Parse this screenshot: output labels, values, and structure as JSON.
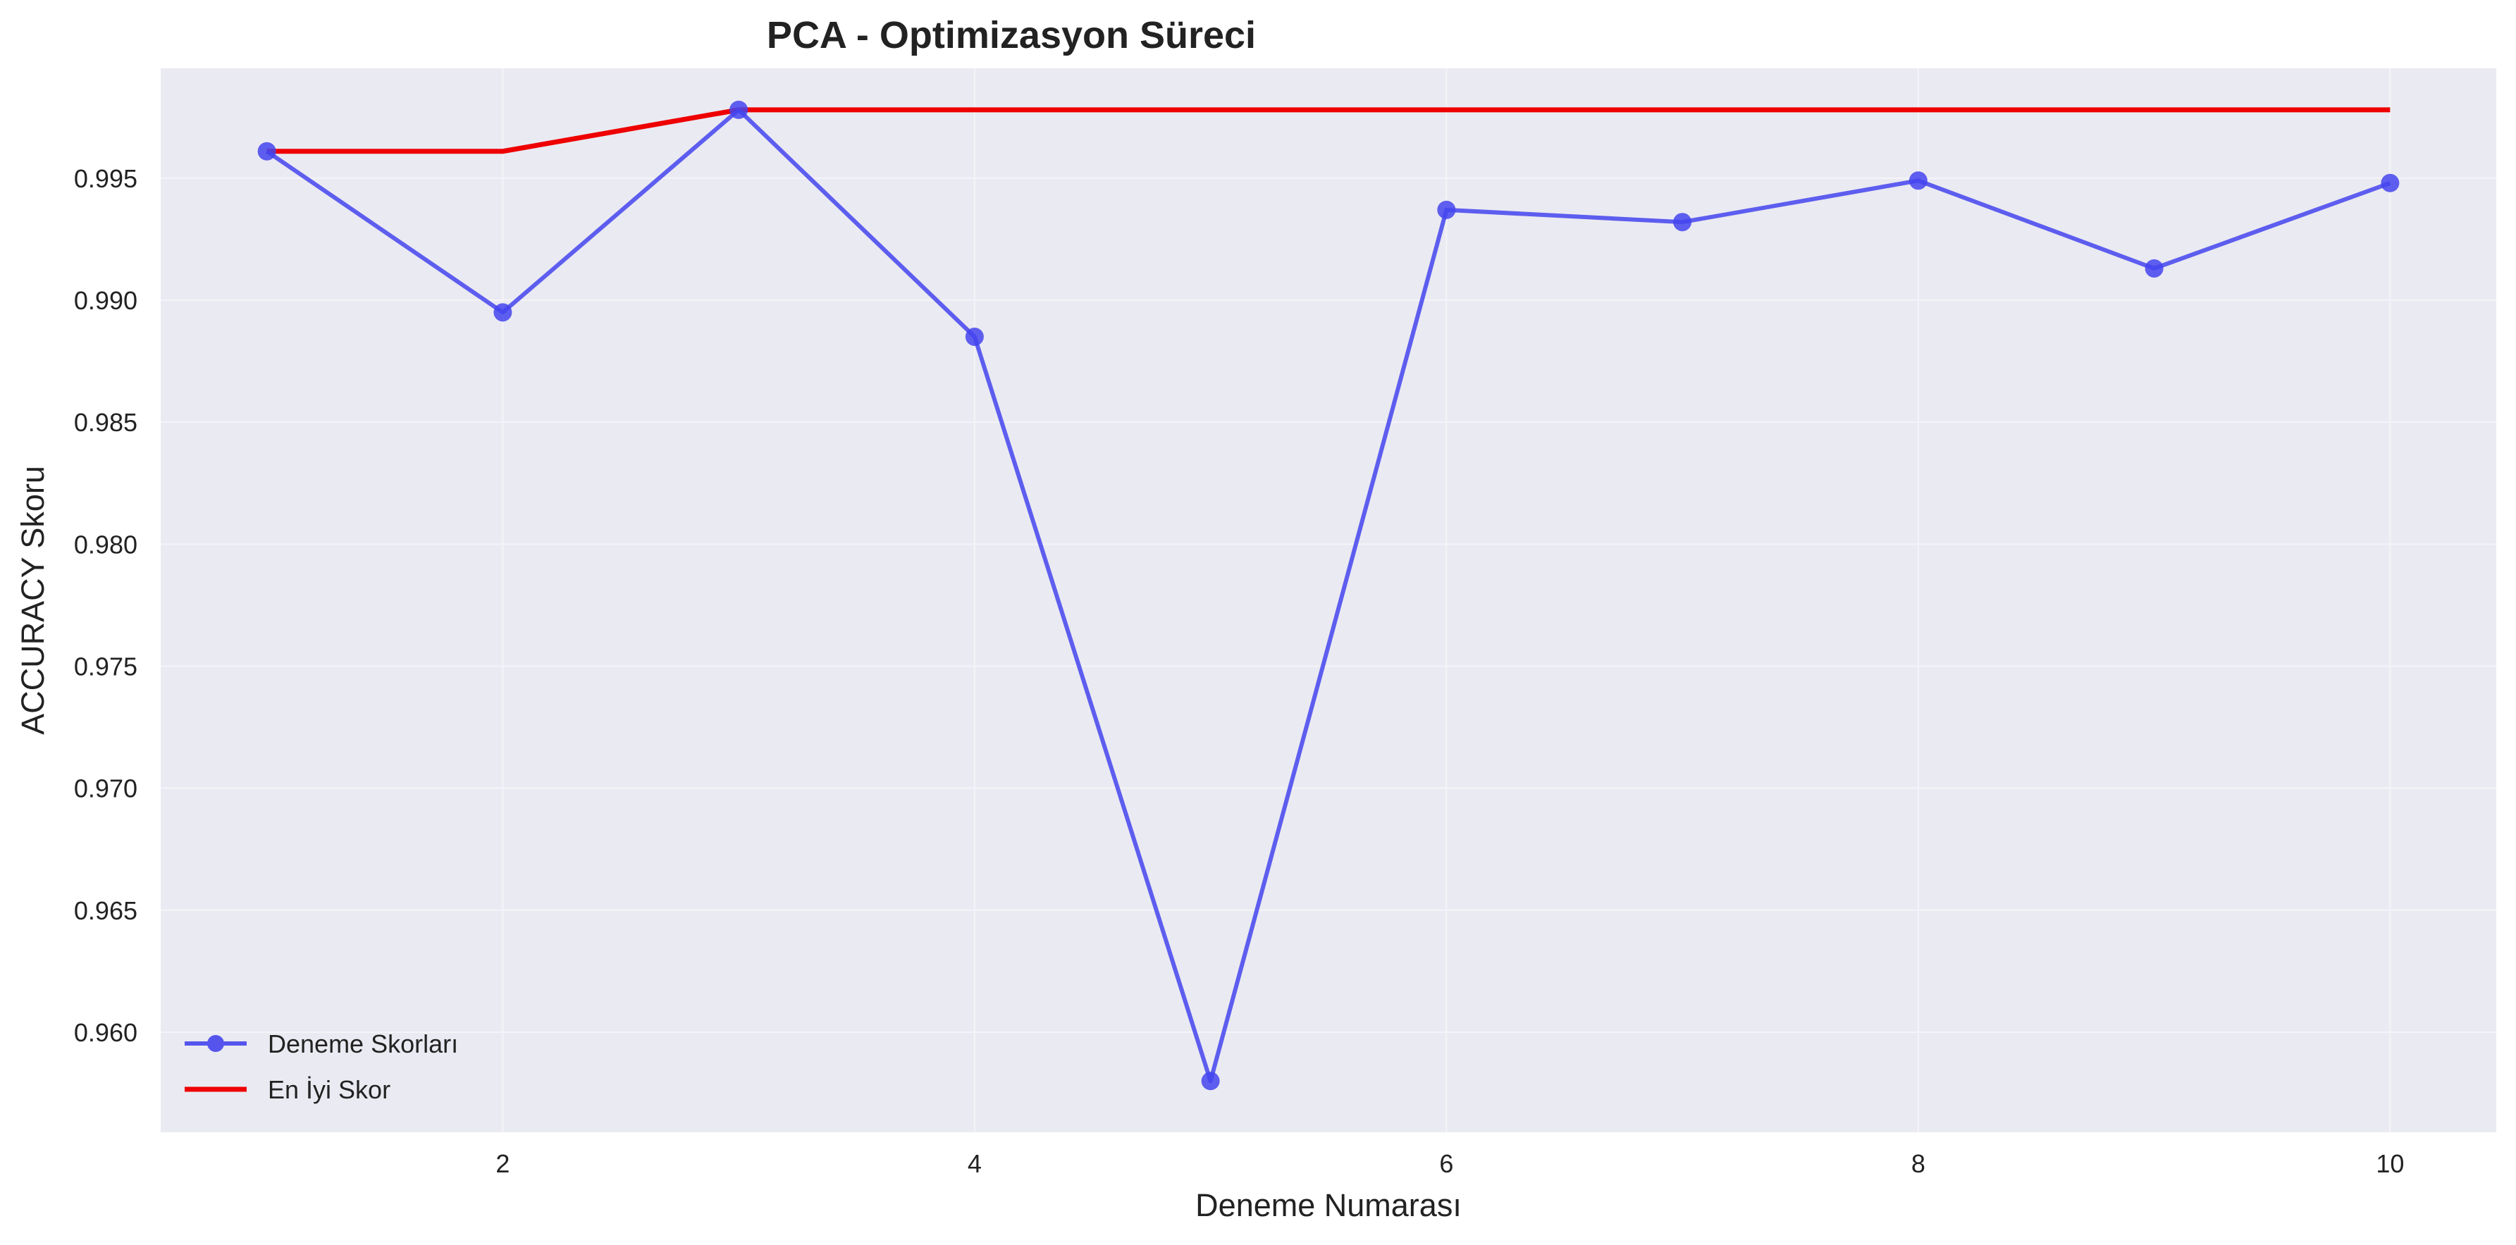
{
  "chart_data": {
    "type": "line",
    "title": "PCA - Optimizasyon Süreci",
    "xlabel": "Deneme Numarası",
    "ylabel": "ACCURACY Skoru",
    "xlim": [
      0.55,
      10.45
    ],
    "ylim": [
      0.9559,
      0.9995
    ],
    "xticks": [
      2,
      4,
      6,
      8,
      10
    ],
    "yticks": [
      0.96,
      0.965,
      0.97,
      0.975,
      0.98,
      0.985,
      0.99,
      0.995
    ],
    "ytick_labels": [
      "0.960",
      "0.965",
      "0.970",
      "0.975",
      "0.980",
      "0.985",
      "0.990",
      "0.995"
    ],
    "grid": true,
    "legend_position": "lower-left",
    "x": [
      1,
      2,
      3,
      4,
      5,
      6,
      7,
      8,
      9,
      10
    ],
    "series": [
      {
        "name": "Deneme Skorları",
        "color": "#4444ee",
        "marker": "circle",
        "values": [
          0.9961,
          0.9895,
          0.9978,
          0.9885,
          0.958,
          0.9937,
          0.9932,
          0.9949,
          0.9913,
          0.9948
        ]
      },
      {
        "name": "En İyi Skor",
        "color": "#ee0000",
        "marker": "none",
        "values": [
          0.9961,
          0.9961,
          0.9978,
          0.9978,
          0.9978,
          0.9978,
          0.9978,
          0.9978,
          0.9978,
          0.9978
        ]
      }
    ]
  },
  "colors": {
    "plot_background": "#eaeaf2",
    "grid": "#f4f4f8",
    "page_background": "#ffffff"
  }
}
